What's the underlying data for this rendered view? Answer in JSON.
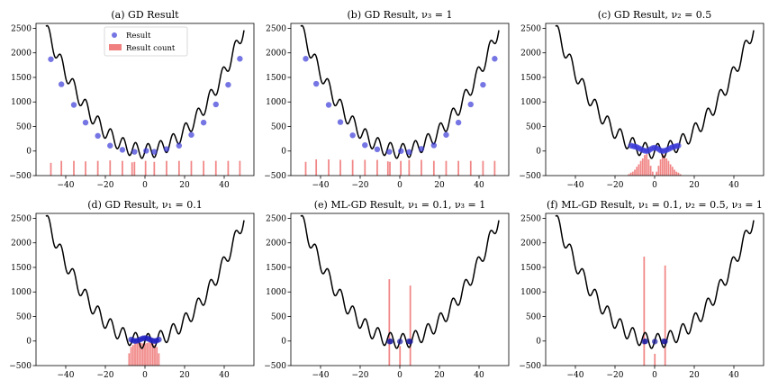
{
  "figure": {
    "panel_count": 6
  },
  "chart_data": [
    {
      "type": "line",
      "title": "(a) GD Result",
      "xlim": [
        -55,
        55
      ],
      "ylim": [
        -500,
        2600
      ],
      "xticks": [
        -40,
        -20,
        0,
        20,
        40
      ],
      "yticks": [
        -500,
        0,
        500,
        1000,
        1500,
        2000,
        2500
      ],
      "curve": {
        "color": "#000000"
      },
      "legend": {
        "placement": "top-center",
        "entries": [
          "Result",
          "Result  count"
        ]
      },
      "points": {
        "color": "#3b3bd9",
        "x": [
          -47.5,
          -42.2,
          -35.9,
          -30.0,
          -23.8,
          -17.6,
          -11.4,
          -5.3,
          0.6,
          4.7,
          10.9,
          17.2,
          23.4,
          29.6,
          35.8,
          42.0,
          47.9
        ],
        "y": [
          1870,
          1360,
          940,
          580,
          310,
          110,
          25,
          -15,
          5,
          -15,
          40,
          110,
          330,
          580,
          950,
          1350,
          1880
        ]
      },
      "hist": {
        "color": "#f08080",
        "bars": [
          [
            -47.5,
            260
          ],
          [
            -42.2,
            300
          ],
          [
            -35.9,
            300
          ],
          [
            -30.0,
            290
          ],
          [
            -23.8,
            300
          ],
          [
            -17.6,
            310
          ],
          [
            -11.4,
            300
          ],
          [
            -6.5,
            270
          ],
          [
            -5.3,
            280
          ],
          [
            0.3,
            300
          ],
          [
            4.7,
            280
          ],
          [
            10.9,
            300
          ],
          [
            17.2,
            300
          ],
          [
            23.4,
            300
          ],
          [
            29.6,
            300
          ],
          [
            35.8,
            300
          ],
          [
            42.0,
            300
          ],
          [
            47.9,
            300
          ]
        ]
      }
    },
    {
      "type": "line",
      "title": "(b) GD Result, ν₃ = 1",
      "xlim": [
        -55,
        55
      ],
      "ylim": [
        -500,
        2600
      ],
      "xticks": [
        -40,
        -20,
        0,
        20,
        40
      ],
      "yticks": [
        -500,
        0,
        500,
        1000,
        1500,
        2000,
        2500
      ],
      "curve": {
        "color": "#000000"
      },
      "points": {
        "color": "#3b3bd9",
        "x": [
          -47.5,
          -42.2,
          -35.9,
          -30.0,
          -23.8,
          -17.6,
          -11.4,
          -5.3,
          0.6,
          4.7,
          10.9,
          17.2,
          23.4,
          29.6,
          35.8,
          42.0,
          47.9
        ],
        "y": [
          1880,
          1370,
          940,
          590,
          320,
          120,
          35,
          -15,
          0,
          -20,
          45,
          115,
          330,
          580,
          950,
          1350,
          1880
        ]
      },
      "hist": {
        "color": "#f08080",
        "bars": [
          [
            -47.5,
            280
          ],
          [
            -42.2,
            330
          ],
          [
            -35.9,
            330
          ],
          [
            -30.0,
            320
          ],
          [
            -23.8,
            320
          ],
          [
            -17.6,
            320
          ],
          [
            -11.4,
            320
          ],
          [
            -6.0,
            290
          ],
          [
            -5.0,
            280
          ],
          [
            0.5,
            300
          ],
          [
            4.7,
            320
          ],
          [
            10.9,
            320
          ],
          [
            17.2,
            300
          ],
          [
            23.4,
            300
          ],
          [
            29.6,
            300
          ],
          [
            35.8,
            300
          ],
          [
            42.0,
            300
          ],
          [
            47.9,
            300
          ]
        ]
      }
    },
    {
      "type": "line",
      "title": "(c) GD Result, ν₂ = 0.5",
      "xlim": [
        -55,
        55
      ],
      "ylim": [
        -500,
        2600
      ],
      "xticks": [
        -40,
        -20,
        0,
        20,
        40
      ],
      "yticks": [
        -500,
        0,
        500,
        1000,
        1500,
        2000,
        2500
      ],
      "curve": {
        "color": "#000000"
      },
      "points": {
        "color": "#3b3bd9",
        "x": [
          -12,
          -11,
          -10,
          -9,
          -8,
          -7,
          -6,
          -5,
          -4,
          -3,
          -2,
          -1,
          0,
          1,
          2,
          3,
          4,
          5,
          6,
          7,
          8,
          9,
          10,
          11,
          12
        ],
        "y": [
          110,
          100,
          90,
          80,
          60,
          40,
          20,
          5,
          0,
          10,
          40,
          60,
          70,
          60,
          40,
          10,
          0,
          5,
          20,
          40,
          60,
          80,
          90,
          100,
          110
        ]
      },
      "hist": {
        "color": "#f08080",
        "bars": [
          [
            -13,
            30
          ],
          [
            -12,
            60
          ],
          [
            -11,
            80
          ],
          [
            -10,
            120
          ],
          [
            -9,
            180
          ],
          [
            -8,
            230
          ],
          [
            -7,
            300
          ],
          [
            -6,
            350
          ],
          [
            -5,
            420
          ],
          [
            -4,
            440
          ],
          [
            -3,
            330
          ],
          [
            -2,
            200
          ],
          [
            -1,
            80
          ],
          [
            1,
            80
          ],
          [
            2,
            200
          ],
          [
            3,
            330
          ],
          [
            4,
            440
          ],
          [
            5,
            420
          ],
          [
            6,
            350
          ],
          [
            7,
            300
          ],
          [
            8,
            230
          ],
          [
            9,
            180
          ],
          [
            10,
            120
          ],
          [
            11,
            80
          ],
          [
            12,
            60
          ],
          [
            13,
            30
          ]
        ]
      }
    },
    {
      "type": "line",
      "title": "(d) GD Result, ν₁ = 0.1",
      "xlim": [
        -55,
        55
      ],
      "ylim": [
        -500,
        2600
      ],
      "xticks": [
        -40,
        -20,
        0,
        20,
        40
      ],
      "yticks": [
        -500,
        0,
        500,
        1000,
        1500,
        2000,
        2500
      ],
      "curve": {
        "color": "#000000"
      },
      "points": {
        "color": "#2020c0",
        "x": [
          -7,
          -6,
          -5,
          -4,
          -3,
          -2,
          -1,
          0,
          1,
          2,
          3,
          4,
          5,
          6,
          7
        ],
        "y": [
          30,
          10,
          0,
          5,
          20,
          40,
          55,
          60,
          55,
          40,
          20,
          5,
          0,
          10,
          30
        ]
      },
      "hist": {
        "color": "#f08080",
        "bars": [
          [
            -8,
            250
          ],
          [
            -7,
            380
          ],
          [
            -6,
            420
          ],
          [
            -5,
            450
          ],
          [
            -4,
            480
          ],
          [
            -3,
            470
          ],
          [
            -2,
            460
          ],
          [
            -1,
            450
          ],
          [
            0,
            450
          ],
          [
            1,
            460
          ],
          [
            2,
            470
          ],
          [
            3,
            480
          ],
          [
            4,
            450
          ],
          [
            5,
            420
          ],
          [
            6,
            380
          ],
          [
            7,
            250
          ]
        ]
      }
    },
    {
      "type": "line",
      "title": "(e) ML-GD Result, ν₁ = 0.1, ν₃ = 1",
      "xlim": [
        -55,
        55
      ],
      "ylim": [
        -500,
        2600
      ],
      "xticks": [
        -40,
        -20,
        0,
        20,
        40
      ],
      "yticks": [
        -500,
        0,
        500,
        1000,
        1500,
        2000,
        2500
      ],
      "curve": {
        "color": "#000000"
      },
      "points": {
        "color": "#1a1aa0",
        "x": [
          -5.2,
          -4.6,
          0.1,
          4.6,
          5.2
        ],
        "y": [
          -10,
          -5,
          -10,
          -5,
          -10
        ]
      },
      "hist": {
        "color": "#f08080",
        "bars": [
          [
            -5.3,
            1760
          ],
          [
            0.1,
            400
          ],
          [
            5.3,
            1630
          ]
        ]
      }
    },
    {
      "type": "line",
      "title": "(f) ML-GD Result, ν₁ = 0.1, ν₂ = 0.5, ν₃ = 1",
      "xlim": [
        -55,
        55
      ],
      "ylim": [
        -500,
        2600
      ],
      "xticks": [
        -40,
        -20,
        0,
        20,
        40
      ],
      "yticks": [
        -500,
        0,
        500,
        1000,
        1500,
        2000,
        2500
      ],
      "curve": {
        "color": "#000000"
      },
      "points": {
        "color": "#1a1aa0",
        "x": [
          -5.2,
          -4.6,
          0.1,
          4.6,
          5.2
        ],
        "y": [
          -10,
          -5,
          -10,
          -5,
          -10
        ]
      },
      "hist": {
        "color": "#f08080",
        "bars": [
          [
            -5.3,
            2220
          ],
          [
            0.1,
            240
          ],
          [
            5.3,
            2040
          ]
        ]
      }
    }
  ]
}
